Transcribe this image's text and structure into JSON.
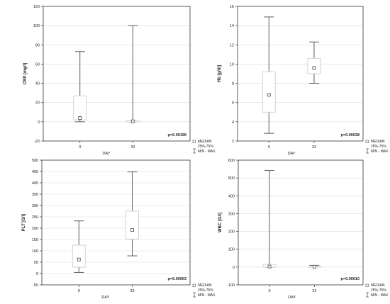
{
  "legend": {
    "median": "MEDIAN",
    "iqr": "25%-75%",
    "range": "MIN - MAX"
  },
  "colors": {
    "box_fill": "#ffffff",
    "box_edge": "#c8c8c8",
    "whisker": "#4a4a4a",
    "frame": "#333333",
    "grid": "#d9d9d9",
    "text": "#222222"
  },
  "chart_data": [
    {
      "type": "box",
      "ylabel": "CRP [mg/l]",
      "xlabel": "DAY",
      "categories": [
        "0",
        "33"
      ],
      "yticks": [
        -20,
        0,
        20,
        40,
        60,
        80,
        100,
        120
      ],
      "ylim": [
        -20,
        120
      ],
      "grid": true,
      "annotation": "p=0.00196",
      "boxes": [
        {
          "median": 4,
          "q1": 2,
          "q3": 27,
          "min": 0,
          "max": 73
        },
        {
          "median": 0.5,
          "q1": 0,
          "q3": 1,
          "min": 0,
          "max": 100
        }
      ]
    },
    {
      "type": "box",
      "ylabel": "Hb [g/dl]",
      "xlabel": "DAY",
      "categories": [
        "0",
        "33"
      ],
      "yticks": [
        2,
        4,
        6,
        8,
        10,
        12,
        14,
        16
      ],
      "ylim": [
        2,
        16
      ],
      "grid": true,
      "annotation": "p=0.00038",
      "boxes": [
        {
          "median": 6.8,
          "q1": 5.0,
          "q3": 9.2,
          "min": 2.8,
          "max": 14.9
        },
        {
          "median": 9.6,
          "q1": 9.0,
          "q3": 10.6,
          "min": 8.0,
          "max": 12.3
        }
      ]
    },
    {
      "type": "box",
      "ylabel": "PLT [G/l]",
      "xlabel": "DAY",
      "categories": [
        "0",
        "33"
      ],
      "yticks": [
        -50,
        0,
        50,
        100,
        150,
        200,
        250,
        300,
        350,
        400,
        450,
        500
      ],
      "ylim": [
        -50,
        500
      ],
      "grid": true,
      "annotation": "p=0.00003",
      "boxes": [
        {
          "median": 62,
          "q1": 28,
          "q3": 125,
          "min": 5,
          "max": 232
        },
        {
          "median": 192,
          "q1": 152,
          "q3": 275,
          "min": 78,
          "max": 448
        }
      ]
    },
    {
      "type": "box",
      "ylabel": "WBC [G/l]",
      "xlabel": "DAY",
      "categories": [
        "0",
        "33"
      ],
      "yticks": [
        -100,
        0,
        100,
        200,
        300,
        400,
        500,
        600
      ],
      "ylim": [
        -100,
        600
      ],
      "grid": true,
      "annotation": "p=0.00010",
      "boxes": [
        {
          "median": 3,
          "q1": 0,
          "q3": 15,
          "min": 0,
          "max": 542
        },
        {
          "median": 2,
          "q1": 0,
          "q3": 5,
          "min": 0,
          "max": 10
        }
      ]
    }
  ]
}
